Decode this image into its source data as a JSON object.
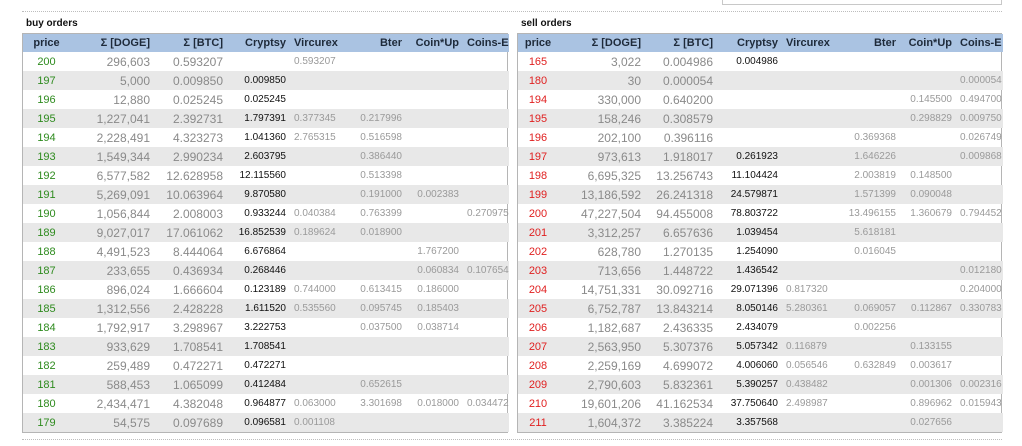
{
  "buy": {
    "title": "buy orders",
    "headers": [
      "price",
      "Σ [DOGE]",
      "Σ [BTC]",
      "Cryptsy",
      "Vircurex",
      "Bter",
      "Coin*Up",
      "Coins-E"
    ],
    "rows": [
      [
        "200",
        "296,603",
        "0.593207",
        "",
        "0.593207",
        "",
        "",
        ""
      ],
      [
        "197",
        "5,000",
        "0.009850",
        "0.009850",
        "",
        "",
        "",
        ""
      ],
      [
        "196",
        "12,880",
        "0.025245",
        "0.025245",
        "",
        "",
        "",
        ""
      ],
      [
        "195",
        "1,227,041",
        "2.392731",
        "1.797391",
        "0.377345",
        "0.217996",
        "",
        ""
      ],
      [
        "194",
        "2,228,491",
        "4.323273",
        "1.041360",
        "2.765315",
        "0.516598",
        "",
        ""
      ],
      [
        "193",
        "1,549,344",
        "2.990234",
        "2.603795",
        "",
        "0.386440",
        "",
        ""
      ],
      [
        "192",
        "6,577,582",
        "12.628958",
        "12.115560",
        "",
        "0.513398",
        "",
        ""
      ],
      [
        "191",
        "5,269,091",
        "10.063964",
        "9.870580",
        "",
        "0.191000",
        "0.002383",
        ""
      ],
      [
        "190",
        "1,056,844",
        "2.008003",
        "0.933244",
        "0.040384",
        "0.763399",
        "",
        "0.270975"
      ],
      [
        "189",
        "9,027,017",
        "17.061062",
        "16.852539",
        "0.189624",
        "0.018900",
        "",
        ""
      ],
      [
        "188",
        "4,491,523",
        "8.444064",
        "6.676864",
        "",
        "",
        "1.767200",
        ""
      ],
      [
        "187",
        "233,655",
        "0.436934",
        "0.268446",
        "",
        "",
        "0.060834",
        "0.107654"
      ],
      [
        "186",
        "896,024",
        "1.666604",
        "0.123189",
        "0.744000",
        "0.613415",
        "0.186000",
        ""
      ],
      [
        "185",
        "1,312,556",
        "2.428228",
        "1.611520",
        "0.535560",
        "0.095745",
        "0.185403",
        ""
      ],
      [
        "184",
        "1,792,917",
        "3.298967",
        "3.222753",
        "",
        "0.037500",
        "0.038714",
        ""
      ],
      [
        "183",
        "933,629",
        "1.708541",
        "1.708541",
        "",
        "",
        "",
        ""
      ],
      [
        "182",
        "259,489",
        "0.472271",
        "0.472271",
        "",
        "",
        "",
        ""
      ],
      [
        "181",
        "588,453",
        "1.065099",
        "0.412484",
        "",
        "0.652615",
        "",
        ""
      ],
      [
        "180",
        "2,434,471",
        "4.382048",
        "0.964877",
        "0.063000",
        "3.301698",
        "0.018000",
        "0.034472"
      ],
      [
        "179",
        "54,575",
        "0.097689",
        "0.096581",
        "0.001108",
        "",
        "",
        ""
      ]
    ]
  },
  "sell": {
    "title": "sell orders",
    "headers": [
      "price",
      "Σ [DOGE]",
      "Σ [BTC]",
      "Cryptsy",
      "Vircurex",
      "Bter",
      "Coin*Up",
      "Coins-E"
    ],
    "rows": [
      [
        "165",
        "3,022",
        "0.004986",
        "0.004986",
        "",
        "",
        "",
        ""
      ],
      [
        "180",
        "30",
        "0.000054",
        "",
        "",
        "",
        "",
        "0.000054"
      ],
      [
        "194",
        "330,000",
        "0.640200",
        "",
        "",
        "",
        "0.145500",
        "0.494700"
      ],
      [
        "195",
        "158,246",
        "0.308579",
        "",
        "",
        "",
        "0.298829",
        "0.009750"
      ],
      [
        "196",
        "202,100",
        "0.396116",
        "",
        "",
        "0.369368",
        "",
        "0.026749"
      ],
      [
        "197",
        "973,613",
        "1.918017",
        "0.261923",
        "",
        "1.646226",
        "",
        "0.009868"
      ],
      [
        "198",
        "6,695,325",
        "13.256743",
        "11.104424",
        "",
        "2.003819",
        "0.148500",
        ""
      ],
      [
        "199",
        "13,186,592",
        "26.241318",
        "24.579871",
        "",
        "1.571399",
        "0.090048",
        ""
      ],
      [
        "200",
        "47,227,504",
        "94.455008",
        "78.803722",
        "",
        "13.496155",
        "1.360679",
        "0.794452"
      ],
      [
        "201",
        "3,312,257",
        "6.657636",
        "1.039454",
        "",
        "5.618181",
        "",
        ""
      ],
      [
        "202",
        "628,780",
        "1.270135",
        "1.254090",
        "",
        "0.016045",
        "",
        ""
      ],
      [
        "203",
        "713,656",
        "1.448722",
        "1.436542",
        "",
        "",
        "",
        "0.012180"
      ],
      [
        "204",
        "14,751,331",
        "30.092716",
        "29.071396",
        "0.817320",
        "",
        "",
        "0.204000"
      ],
      [
        "205",
        "6,752,787",
        "13.843214",
        "8.050146",
        "5.280361",
        "0.069057",
        "0.112867",
        "0.330783"
      ],
      [
        "206",
        "1,182,687",
        "2.436335",
        "2.434079",
        "",
        "0.002256",
        "",
        ""
      ],
      [
        "207",
        "2,563,950",
        "5.307376",
        "5.057342",
        "0.116879",
        "",
        "0.133155",
        ""
      ],
      [
        "208",
        "2,259,169",
        "4.699072",
        "4.006060",
        "0.056546",
        "0.632849",
        "0.003617",
        ""
      ],
      [
        "209",
        "2,790,603",
        "5.832361",
        "5.390257",
        "0.438482",
        "",
        "0.001306",
        "0.002316"
      ],
      [
        "210",
        "19,601,206",
        "41.162534",
        "37.750640",
        "2.498987",
        "",
        "0.896962",
        "0.015943"
      ],
      [
        "211",
        "1,604,372",
        "3.385224",
        "3.357568",
        "",
        "",
        "0.027656",
        ""
      ]
    ]
  }
}
